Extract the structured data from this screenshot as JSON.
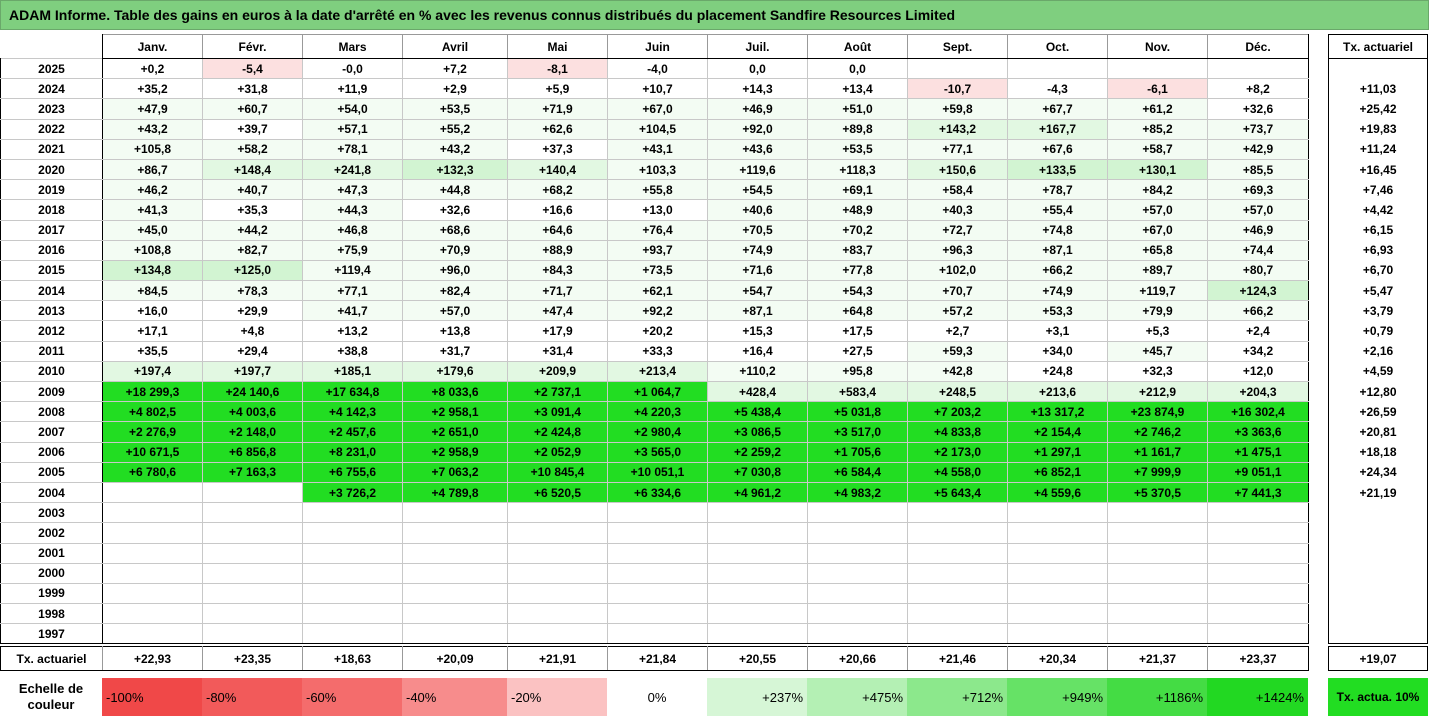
{
  "title": "ADAM Informe. Table des gains en euros à la date d'arrêté en % avec les revenus connus distribués du placement Sandfire Resources Limited",
  "months": [
    "Janv.",
    "Févr.",
    "Mars",
    "Avril",
    "Mai",
    "Juin",
    "Juil.",
    "Août",
    "Sept.",
    "Oct.",
    "Nov.",
    "Déc."
  ],
  "rate_header": "Tx. actuariel",
  "colors": {
    "neg_light": "#fce0e0",
    "pos_lightest": "#f3fcf3",
    "pos_light": "#e2f8e2",
    "pos_mid": "#d2f4d2",
    "bright_green": "#22dd22",
    "white": "#ffffff"
  },
  "rows": [
    {
      "year": "2025",
      "values": [
        "+0,2",
        "-5,4",
        "-0,0",
        "+7,2",
        "-8,1",
        "-4,0",
        "0,0",
        "0,0",
        "",
        "",
        "",
        ""
      ],
      "rate": ""
    },
    {
      "year": "2024",
      "values": [
        "+35,2",
        "+31,8",
        "+11,9",
        "+2,9",
        "+5,9",
        "+10,7",
        "+14,3",
        "+13,4",
        "-10,7",
        "-4,3",
        "-6,1",
        "+8,2"
      ],
      "rate": "+11,03"
    },
    {
      "year": "2023",
      "values": [
        "+47,9",
        "+60,7",
        "+54,0",
        "+53,5",
        "+71,9",
        "+67,0",
        "+46,9",
        "+51,0",
        "+59,8",
        "+67,7",
        "+61,2",
        "+32,6"
      ],
      "rate": "+25,42"
    },
    {
      "year": "2022",
      "values": [
        "+43,2",
        "+39,7",
        "+57,1",
        "+55,2",
        "+62,6",
        "+104,5",
        "+92,0",
        "+89,8",
        "+143,2",
        "+167,7",
        "+85,2",
        "+73,7"
      ],
      "rate": "+19,83"
    },
    {
      "year": "2021",
      "values": [
        "+105,8",
        "+58,2",
        "+78,1",
        "+43,2",
        "+37,3",
        "+43,1",
        "+43,6",
        "+53,5",
        "+77,1",
        "+67,6",
        "+58,7",
        "+42,9"
      ],
      "rate": "+11,24"
    },
    {
      "year": "2020",
      "values": [
        "+86,7",
        "+148,4",
        "+241,8",
        "+132,3",
        "+140,4",
        "+103,3",
        "+119,6",
        "+118,3",
        "+150,6",
        "+133,5",
        "+130,1",
        "+85,5"
      ],
      "rate": "+16,45"
    },
    {
      "year": "2019",
      "values": [
        "+46,2",
        "+40,7",
        "+47,3",
        "+44,8",
        "+68,2",
        "+55,8",
        "+54,5",
        "+69,1",
        "+58,4",
        "+78,7",
        "+84,2",
        "+69,3"
      ],
      "rate": "+7,46"
    },
    {
      "year": "2018",
      "values": [
        "+41,3",
        "+35,3",
        "+44,3",
        "+32,6",
        "+16,6",
        "+13,0",
        "+40,6",
        "+48,9",
        "+40,3",
        "+55,4",
        "+57,0",
        "+57,0"
      ],
      "rate": "+4,42"
    },
    {
      "year": "2017",
      "values": [
        "+45,0",
        "+44,2",
        "+46,8",
        "+68,6",
        "+64,6",
        "+76,4",
        "+70,5",
        "+70,2",
        "+72,7",
        "+74,8",
        "+67,0",
        "+46,9"
      ],
      "rate": "+6,15"
    },
    {
      "year": "2016",
      "values": [
        "+108,8",
        "+82,7",
        "+75,9",
        "+70,9",
        "+88,9",
        "+93,7",
        "+74,9",
        "+83,7",
        "+96,3",
        "+87,1",
        "+65,8",
        "+74,4"
      ],
      "rate": "+6,93"
    },
    {
      "year": "2015",
      "values": [
        "+134,8",
        "+125,0",
        "+119,4",
        "+96,0",
        "+84,3",
        "+73,5",
        "+71,6",
        "+77,8",
        "+102,0",
        "+66,2",
        "+89,7",
        "+80,7"
      ],
      "rate": "+6,70"
    },
    {
      "year": "2014",
      "values": [
        "+84,5",
        "+78,3",
        "+77,1",
        "+82,4",
        "+71,7",
        "+62,1",
        "+54,7",
        "+54,3",
        "+70,7",
        "+74,9",
        "+119,7",
        "+124,3"
      ],
      "rate": "+5,47"
    },
    {
      "year": "2013",
      "values": [
        "+16,0",
        "+29,9",
        "+41,7",
        "+57,0",
        "+47,4",
        "+92,2",
        "+87,1",
        "+64,8",
        "+57,2",
        "+53,3",
        "+79,9",
        "+66,2"
      ],
      "rate": "+3,79"
    },
    {
      "year": "2012",
      "values": [
        "+17,1",
        "+4,8",
        "+13,2",
        "+13,8",
        "+17,9",
        "+20,2",
        "+15,3",
        "+17,5",
        "+2,7",
        "+3,1",
        "+5,3",
        "+2,4"
      ],
      "rate": "+0,79"
    },
    {
      "year": "2011",
      "values": [
        "+35,5",
        "+29,4",
        "+38,8",
        "+31,7",
        "+31,4",
        "+33,3",
        "+16,4",
        "+27,5",
        "+59,3",
        "+34,0",
        "+45,7",
        "+34,2"
      ],
      "rate": "+2,16"
    },
    {
      "year": "2010",
      "values": [
        "+197,4",
        "+197,7",
        "+185,1",
        "+179,6",
        "+209,9",
        "+213,4",
        "+110,2",
        "+95,8",
        "+42,8",
        "+24,8",
        "+32,3",
        "+12,0"
      ],
      "rate": "+4,59"
    },
    {
      "year": "2009",
      "values": [
        "+18 299,3",
        "+24 140,6",
        "+17 634,8",
        "+8 033,6",
        "+2 737,1",
        "+1 064,7",
        "+428,4",
        "+583,4",
        "+248,5",
        "+213,6",
        "+212,9",
        "+204,3"
      ],
      "rate": "+12,80"
    },
    {
      "year": "2008",
      "values": [
        "+4 802,5",
        "+4 003,6",
        "+4 142,3",
        "+2 958,1",
        "+3 091,4",
        "+4 220,3",
        "+5 438,4",
        "+5 031,8",
        "+7 203,2",
        "+13 317,2",
        "+23 874,9",
        "+16 302,4"
      ],
      "rate": "+26,59"
    },
    {
      "year": "2007",
      "values": [
        "+2 276,9",
        "+2 148,0",
        "+2 457,6",
        "+2 651,0",
        "+2 424,8",
        "+2 980,4",
        "+3 086,5",
        "+3 517,0",
        "+4 833,8",
        "+2 154,4",
        "+2 746,2",
        "+3 363,6"
      ],
      "rate": "+20,81"
    },
    {
      "year": "2006",
      "values": [
        "+10 671,5",
        "+6 856,8",
        "+8 231,0",
        "+2 958,9",
        "+2 052,9",
        "+3 565,0",
        "+2 259,2",
        "+1 705,6",
        "+2 173,0",
        "+1 297,1",
        "+1 161,7",
        "+1 475,1"
      ],
      "rate": "+18,18"
    },
    {
      "year": "2005",
      "values": [
        "+6 780,6",
        "+7 163,3",
        "+6 755,6",
        "+7 063,2",
        "+10 845,4",
        "+10 051,1",
        "+7 030,8",
        "+6 584,4",
        "+4 558,0",
        "+6 852,1",
        "+7 999,9",
        "+9 051,1"
      ],
      "rate": "+24,34"
    },
    {
      "year": "2004",
      "values": [
        "",
        "",
        "+3 726,2",
        "+4 789,8",
        "+6 520,5",
        "+6 334,6",
        "+4 961,2",
        "+4 983,2",
        "+5 643,4",
        "+4 559,6",
        "+5 370,5",
        "+7 441,3"
      ],
      "rate": "+21,19"
    },
    {
      "year": "2003",
      "values": [
        "",
        "",
        "",
        "",
        "",
        "",
        "",
        "",
        "",
        "",
        "",
        ""
      ],
      "rate": ""
    },
    {
      "year": "2002",
      "values": [
        "",
        "",
        "",
        "",
        "",
        "",
        "",
        "",
        "",
        "",
        "",
        ""
      ],
      "rate": ""
    },
    {
      "year": "2001",
      "values": [
        "",
        "",
        "",
        "",
        "",
        "",
        "",
        "",
        "",
        "",
        "",
        ""
      ],
      "rate": ""
    },
    {
      "year": "2000",
      "values": [
        "",
        "",
        "",
        "",
        "",
        "",
        "",
        "",
        "",
        "",
        "",
        ""
      ],
      "rate": ""
    },
    {
      "year": "1999",
      "values": [
        "",
        "",
        "",
        "",
        "",
        "",
        "",
        "",
        "",
        "",
        "",
        ""
      ],
      "rate": ""
    },
    {
      "year": "1998",
      "values": [
        "",
        "",
        "",
        "",
        "",
        "",
        "",
        "",
        "",
        "",
        "",
        ""
      ],
      "rate": ""
    },
    {
      "year": "1997",
      "values": [
        "",
        "",
        "",
        "",
        "",
        "",
        "",
        "",
        "",
        "",
        "",
        ""
      ],
      "rate": ""
    }
  ],
  "totals": {
    "label": "Tx. actuariel",
    "values": [
      "+22,93",
      "+23,35",
      "+18,63",
      "+20,09",
      "+21,91",
      "+21,84",
      "+20,55",
      "+20,66",
      "+21,46",
      "+20,34",
      "+21,37",
      "+23,37"
    ],
    "overall": "+19,07"
  },
  "scale": {
    "label": "Echelle de couleur",
    "items": [
      {
        "text": "-100%",
        "color": "#f04848",
        "align": "left"
      },
      {
        "text": "-80%",
        "color": "#f25a5a",
        "align": "left"
      },
      {
        "text": "-60%",
        "color": "#f46c6c",
        "align": "left"
      },
      {
        "text": "-40%",
        "color": "#f78c8c",
        "align": "left"
      },
      {
        "text": "-20%",
        "color": "#fbc2c2",
        "align": "left"
      },
      {
        "text": "0%",
        "color": "#ffffff",
        "align": "center"
      },
      {
        "text": "+237%",
        "color": "#d6f6d6",
        "align": "right"
      },
      {
        "text": "+475%",
        "color": "#b4f0b4",
        "align": "right"
      },
      {
        "text": "+712%",
        "color": "#8ce88c",
        "align": "right"
      },
      {
        "text": "+949%",
        "color": "#66e266",
        "align": "right"
      },
      {
        "text": "+1186%",
        "color": "#44dc44",
        "align": "right"
      },
      {
        "text": "+1424%",
        "color": "#22d822",
        "align": "right"
      }
    ],
    "side": "Tx. actua. 10%"
  }
}
